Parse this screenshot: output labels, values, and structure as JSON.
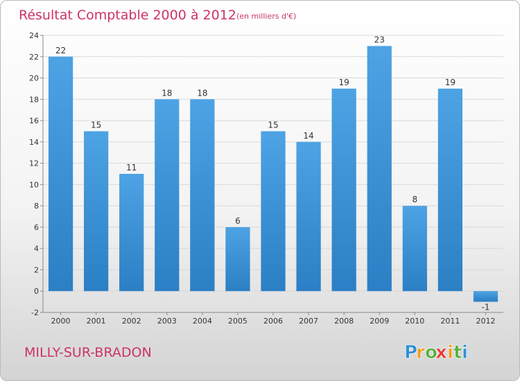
{
  "chart_data": {
    "type": "bar",
    "title": "Résultat Comptable 2000 à 2012",
    "subtitle": "(en milliers d'€)",
    "categories": [
      "2000",
      "2001",
      "2002",
      "2003",
      "2004",
      "2005",
      "2006",
      "2007",
      "2008",
      "2009",
      "2010",
      "2011",
      "2012"
    ],
    "values": [
      22,
      15,
      11,
      18,
      18,
      6,
      15,
      14,
      19,
      23,
      8,
      19,
      -1
    ],
    "value_labels": [
      "22",
      "15",
      "11",
      "18",
      "18",
      "6",
      "15",
      "14",
      "19",
      "23",
      "8",
      "19",
      "-1"
    ],
    "ylim": [
      -2,
      24
    ],
    "yticks": [
      -2,
      0,
      2,
      4,
      6,
      8,
      10,
      12,
      14,
      16,
      18,
      20,
      22,
      24
    ],
    "ytick_labels": [
      "-2",
      "0",
      "2",
      "4",
      "6",
      "8",
      "10",
      "12",
      "14",
      "16",
      "18",
      "20",
      "22",
      "24"
    ],
    "grid": true,
    "xlabel": "",
    "ylabel": "",
    "bar_color": "#4da3e4",
    "bar_color_dark": "#2b7fc4"
  },
  "footer": {
    "city": "MILLY-SUR-BRADON",
    "brand_letters": [
      "P",
      "r",
      "o",
      "x",
      "i",
      "t",
      "i"
    ],
    "brand_colors": [
      "#2d8fd4",
      "#f29a1a",
      "#57b13a",
      "#e63a35",
      "#f29a1a",
      "#57b13a",
      "#2d8fd4"
    ]
  }
}
